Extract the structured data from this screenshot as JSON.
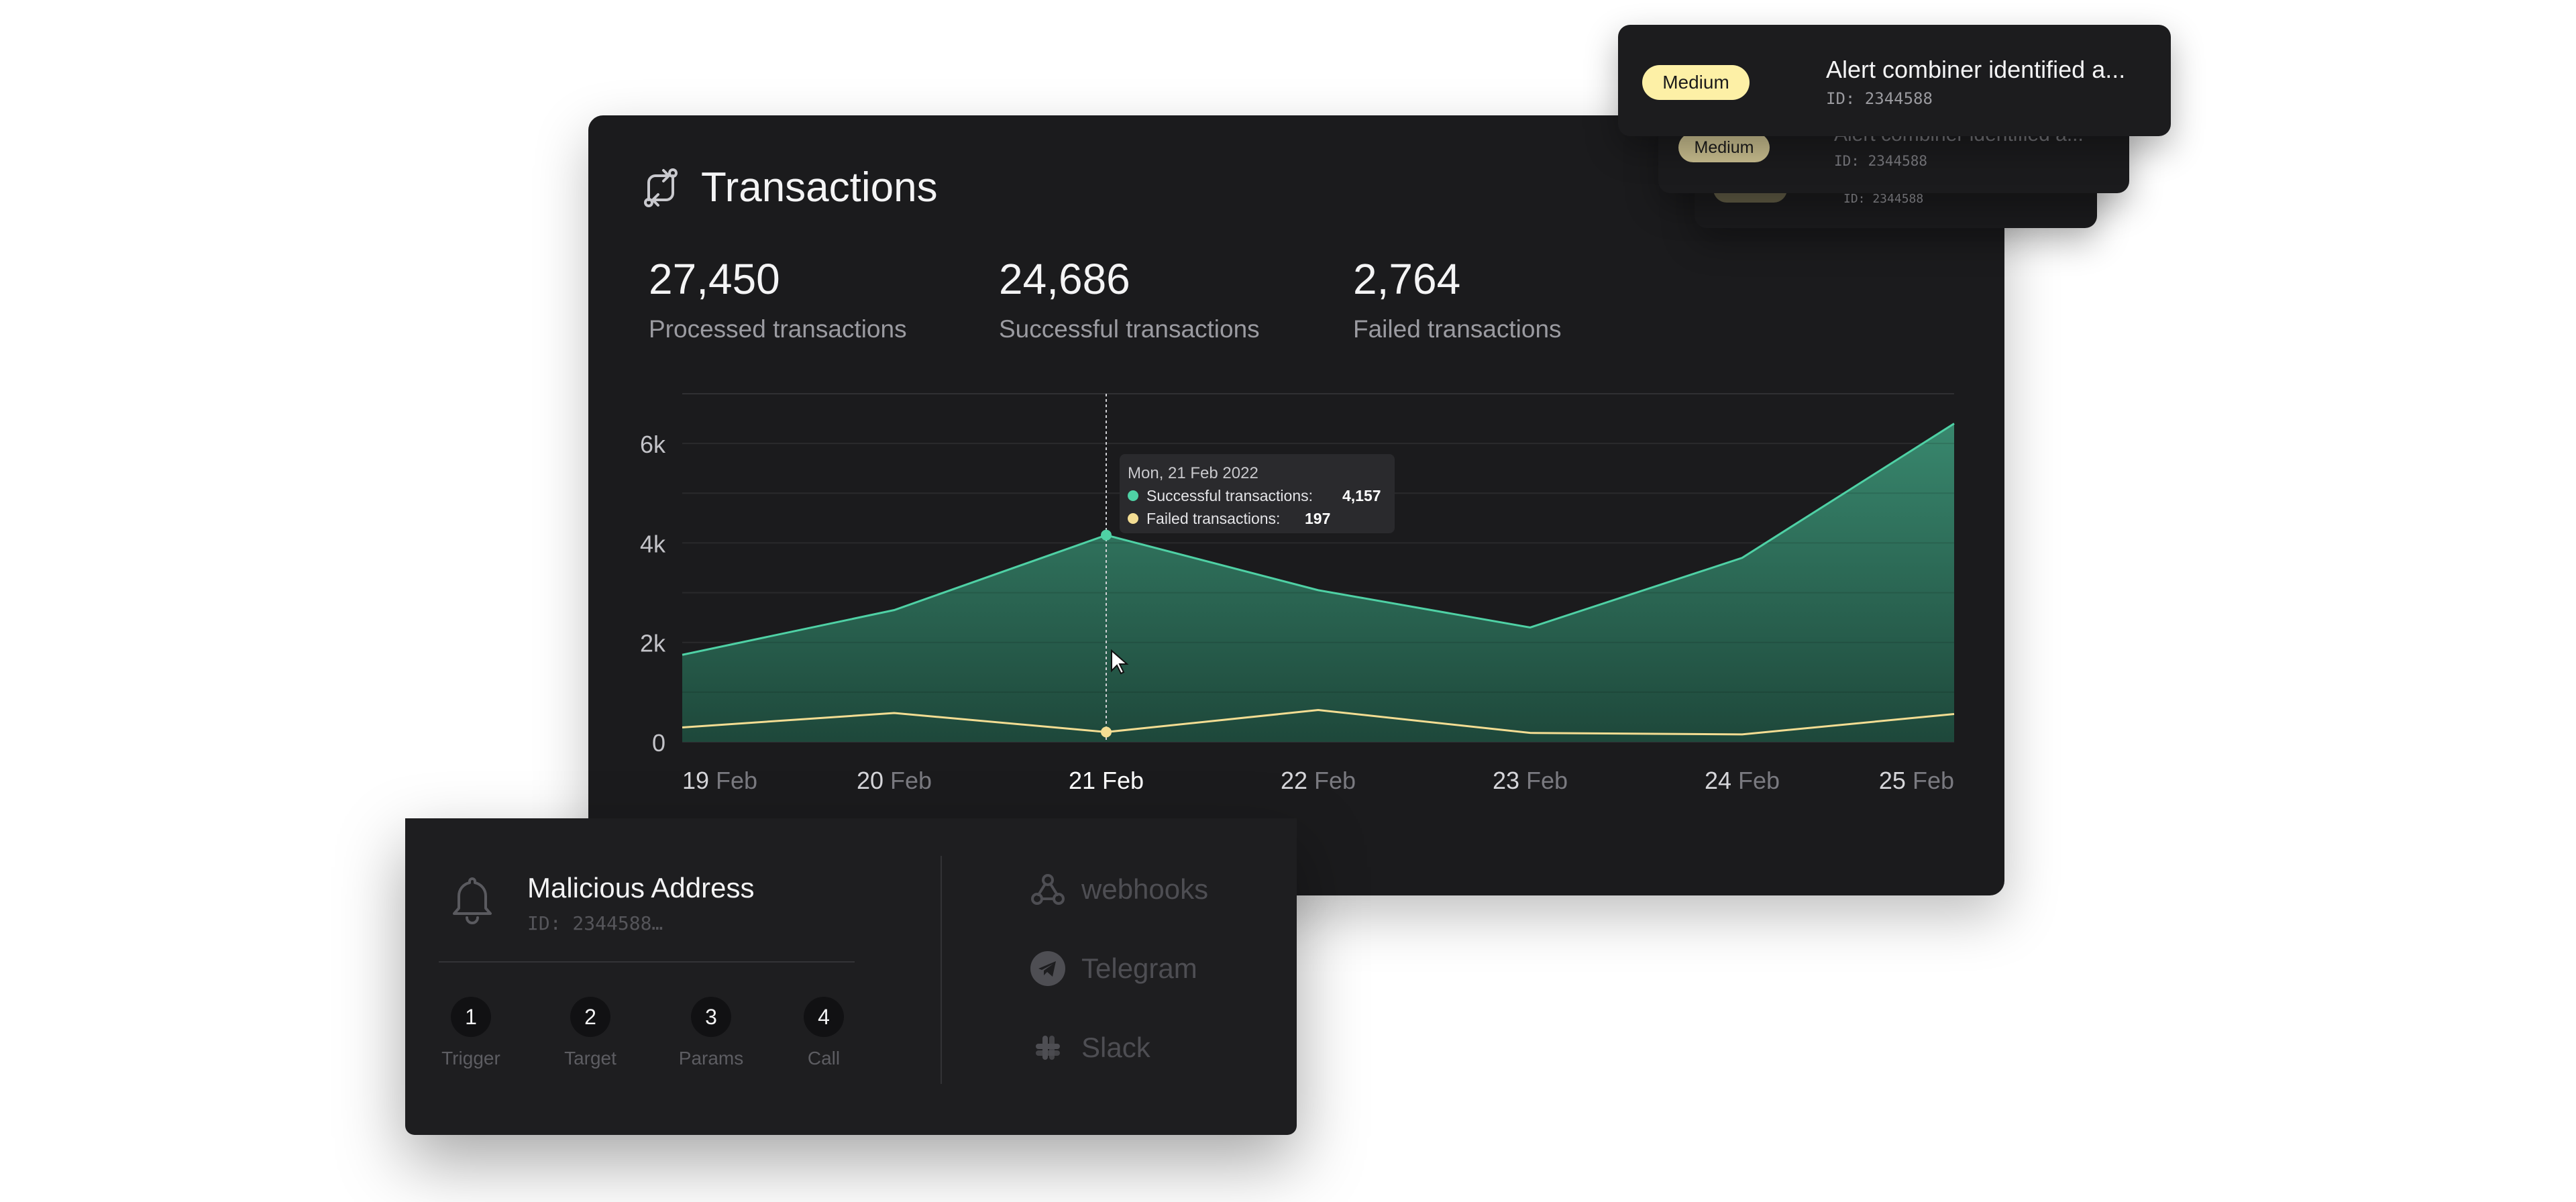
{
  "transactions": {
    "title": "Transactions",
    "icon": "arrows-exchange-icon",
    "stats": [
      {
        "value": "27,450",
        "label": "Processed transactions"
      },
      {
        "value": "24,686",
        "label": "Successful transactions"
      },
      {
        "value": "2,764",
        "label": "Failed transactions"
      }
    ]
  },
  "chart_data": {
    "type": "area",
    "x": [
      "19",
      "20",
      "21",
      "22",
      "23",
      "24",
      "25"
    ],
    "x_month": "Feb",
    "y_ticks": [
      "0",
      "2k",
      "4k",
      "6k"
    ],
    "ylim": [
      0,
      7000
    ],
    "grid": true,
    "highlight_index": 2,
    "series": [
      {
        "name": "Successful transactions",
        "values": [
          1750,
          2650,
          4157,
          3050,
          2300,
          3700,
          6400
        ],
        "color": "#4fd1a5"
      },
      {
        "name": "Failed transactions",
        "values": [
          290,
          580,
          197,
          640,
          180,
          150,
          560
        ],
        "color": "#f3dd93"
      }
    ],
    "tooltip": {
      "date": "Mon, 21 Feb 2022",
      "rows": [
        {
          "label": "Successful transactions:",
          "value": "4,157",
          "color": "#4fd1a5"
        },
        {
          "label": "Failed transactions:",
          "value": "197",
          "color": "#f3dd93"
        }
      ]
    }
  },
  "alerts": [
    {
      "severity": "Medium",
      "title": "Alert combiner identified a...",
      "id": "ID: 2344588"
    },
    {
      "severity": "Medium",
      "title": "Alert combiner identified a...",
      "id": "ID: 2344588"
    },
    {
      "severity": "",
      "title": "",
      "id": "ID: 2344588"
    }
  ],
  "malicious": {
    "title": "Malicious Address",
    "id": "ID: 2344588…",
    "icon": "bell-icon",
    "steps": [
      {
        "num": "1",
        "label": "Trigger"
      },
      {
        "num": "2",
        "label": "Target"
      },
      {
        "num": "3",
        "label": "Params"
      },
      {
        "num": "4",
        "label": "Call"
      }
    ],
    "channels": [
      {
        "label": "webhooks",
        "icon": "webhook-icon"
      },
      {
        "label": "Telegram",
        "icon": "telegram-icon"
      },
      {
        "label": "Slack",
        "icon": "slack-icon"
      }
    ]
  }
}
